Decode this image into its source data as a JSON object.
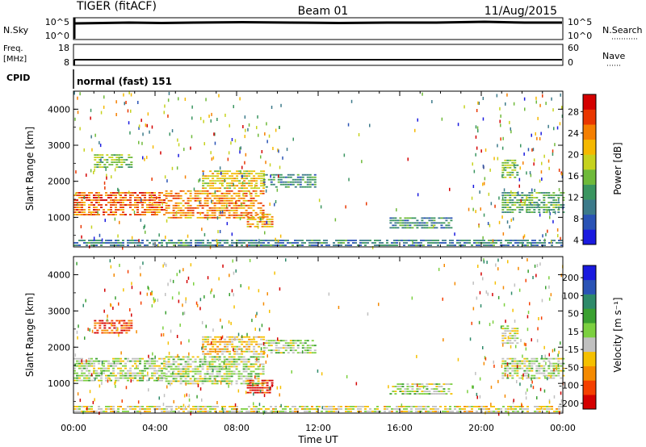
{
  "header": {
    "title": "TIGER (fitACF)",
    "beam": "Beam 01",
    "date": "11/Aug/2015"
  },
  "top_panels": {
    "nsky": {
      "label": "N.Sky",
      "ticks": [
        "10^5",
        "10^0"
      ]
    },
    "nsearch": {
      "label": "N.Search",
      "ticks": [
        "10^5",
        "10^0"
      ]
    },
    "freq": {
      "label_line1": "Freq.",
      "label_line2": "[MHz]",
      "ticks": [
        "18",
        "8"
      ]
    },
    "nave": {
      "label": "Nave",
      "ticks": [
        "60",
        "0"
      ]
    },
    "cpid": {
      "label": "CPID",
      "value": "normal (fast) 151"
    }
  },
  "chart_data": [
    {
      "type": "heatmap",
      "ylabel": "Slant Range [km]",
      "xlabel": "",
      "x_range_hours": [
        0,
        24
      ],
      "y_range_km": [
        180,
        4500
      ],
      "y_ticks": [
        "4000",
        "3000",
        "2000",
        "1000"
      ],
      "x_ticks": [
        "00:00",
        "04:00",
        "08:00",
        "12:00",
        "16:00",
        "20:00",
        "00:00"
      ],
      "colorbar": {
        "label": "Power [dB]",
        "ticks": [
          "28",
          "24",
          "20",
          "16",
          "12",
          "8",
          "4"
        ],
        "range": [
          0,
          30
        ],
        "colors": [
          "#1a1adf",
          "#2a53b5",
          "#3c7a8a",
          "#3a9560",
          "#6fba3a",
          "#c6d21e",
          "#f5b800",
          "#f57f00",
          "#e93700",
          "#d40000"
        ]
      },
      "regions": [
        {
          "t0": 0.0,
          "t1": 4.5,
          "r0": 1050,
          "r1": 1700,
          "value": 24
        },
        {
          "t0": 4.5,
          "t1": 9.3,
          "r0": 950,
          "r1": 1750,
          "value": 22
        },
        {
          "t0": 6.3,
          "t1": 9.3,
          "r0": 1800,
          "r1": 2300,
          "value": 18
        },
        {
          "t0": 1.0,
          "t1": 2.8,
          "r0": 2400,
          "r1": 2750,
          "value": 14
        },
        {
          "t0": 8.5,
          "t1": 9.7,
          "r0": 700,
          "r1": 1100,
          "value": 20
        },
        {
          "t0": 9.3,
          "t1": 11.8,
          "r0": 1800,
          "r1": 2200,
          "value": 9
        },
        {
          "t0": 15.5,
          "t1": 18.5,
          "r0": 700,
          "r1": 1000,
          "value": 9
        },
        {
          "t0": 21.0,
          "t1": 24.0,
          "r0": 1100,
          "r1": 1700,
          "value": 12
        },
        {
          "t0": 21.0,
          "t1": 21.8,
          "r0": 2100,
          "r1": 2600,
          "value": 14
        },
        {
          "t0": 0.0,
          "t1": 24.0,
          "r0": 180,
          "r1": 380,
          "value": 8
        }
      ]
    },
    {
      "type": "heatmap",
      "ylabel": "Slant Range [km]",
      "xlabel": "Time UT",
      "x_range_hours": [
        0,
        24
      ],
      "y_range_km": [
        180,
        4500
      ],
      "y_ticks": [
        "4000",
        "3000",
        "2000",
        "1000"
      ],
      "x_ticks": [
        "00:00",
        "04:00",
        "08:00",
        "12:00",
        "16:00",
        "20:00",
        "00:00"
      ],
      "colorbar": {
        "label": "Velocity [m s⁻¹]",
        "ticks": [
          "200",
          "100",
          "50",
          "15",
          "-15",
          "-50",
          "-100",
          "-200"
        ],
        "range": [
          -250,
          250
        ],
        "colors": [
          "#d40000",
          "#f54000",
          "#f58a00",
          "#f5c000",
          "#c0c0c0",
          "#7cd040",
          "#3aa030",
          "#2e8a6a",
          "#2a53b5",
          "#1a1adf"
        ]
      },
      "regions": [
        {
          "t0": 0.0,
          "t1": 4.5,
          "r0": 1050,
          "r1": 1700,
          "value": 0
        },
        {
          "t0": 4.5,
          "t1": 9.3,
          "r0": 950,
          "r1": 1750,
          "value": 0
        },
        {
          "t0": 6.3,
          "t1": 9.3,
          "r0": 1800,
          "r1": 2300,
          "value": -60
        },
        {
          "t0": 1.0,
          "t1": 2.8,
          "r0": 2400,
          "r1": 2750,
          "value": -180
        },
        {
          "t0": 8.5,
          "t1": 9.7,
          "r0": 700,
          "r1": 1100,
          "value": -200
        },
        {
          "t0": 9.3,
          "t1": 11.8,
          "r0": 1800,
          "r1": 2200,
          "value": 0
        },
        {
          "t0": 15.5,
          "t1": 18.5,
          "r0": 700,
          "r1": 1000,
          "value": 0
        },
        {
          "t0": 21.0,
          "t1": 24.0,
          "r0": 1100,
          "r1": 1700,
          "value": 0
        },
        {
          "t0": 21.0,
          "t1": 21.8,
          "r0": 2100,
          "r1": 2600,
          "value": -30
        },
        {
          "t0": 0.0,
          "t1": 24.0,
          "r0": 180,
          "r1": 380,
          "value": -40
        }
      ]
    }
  ]
}
